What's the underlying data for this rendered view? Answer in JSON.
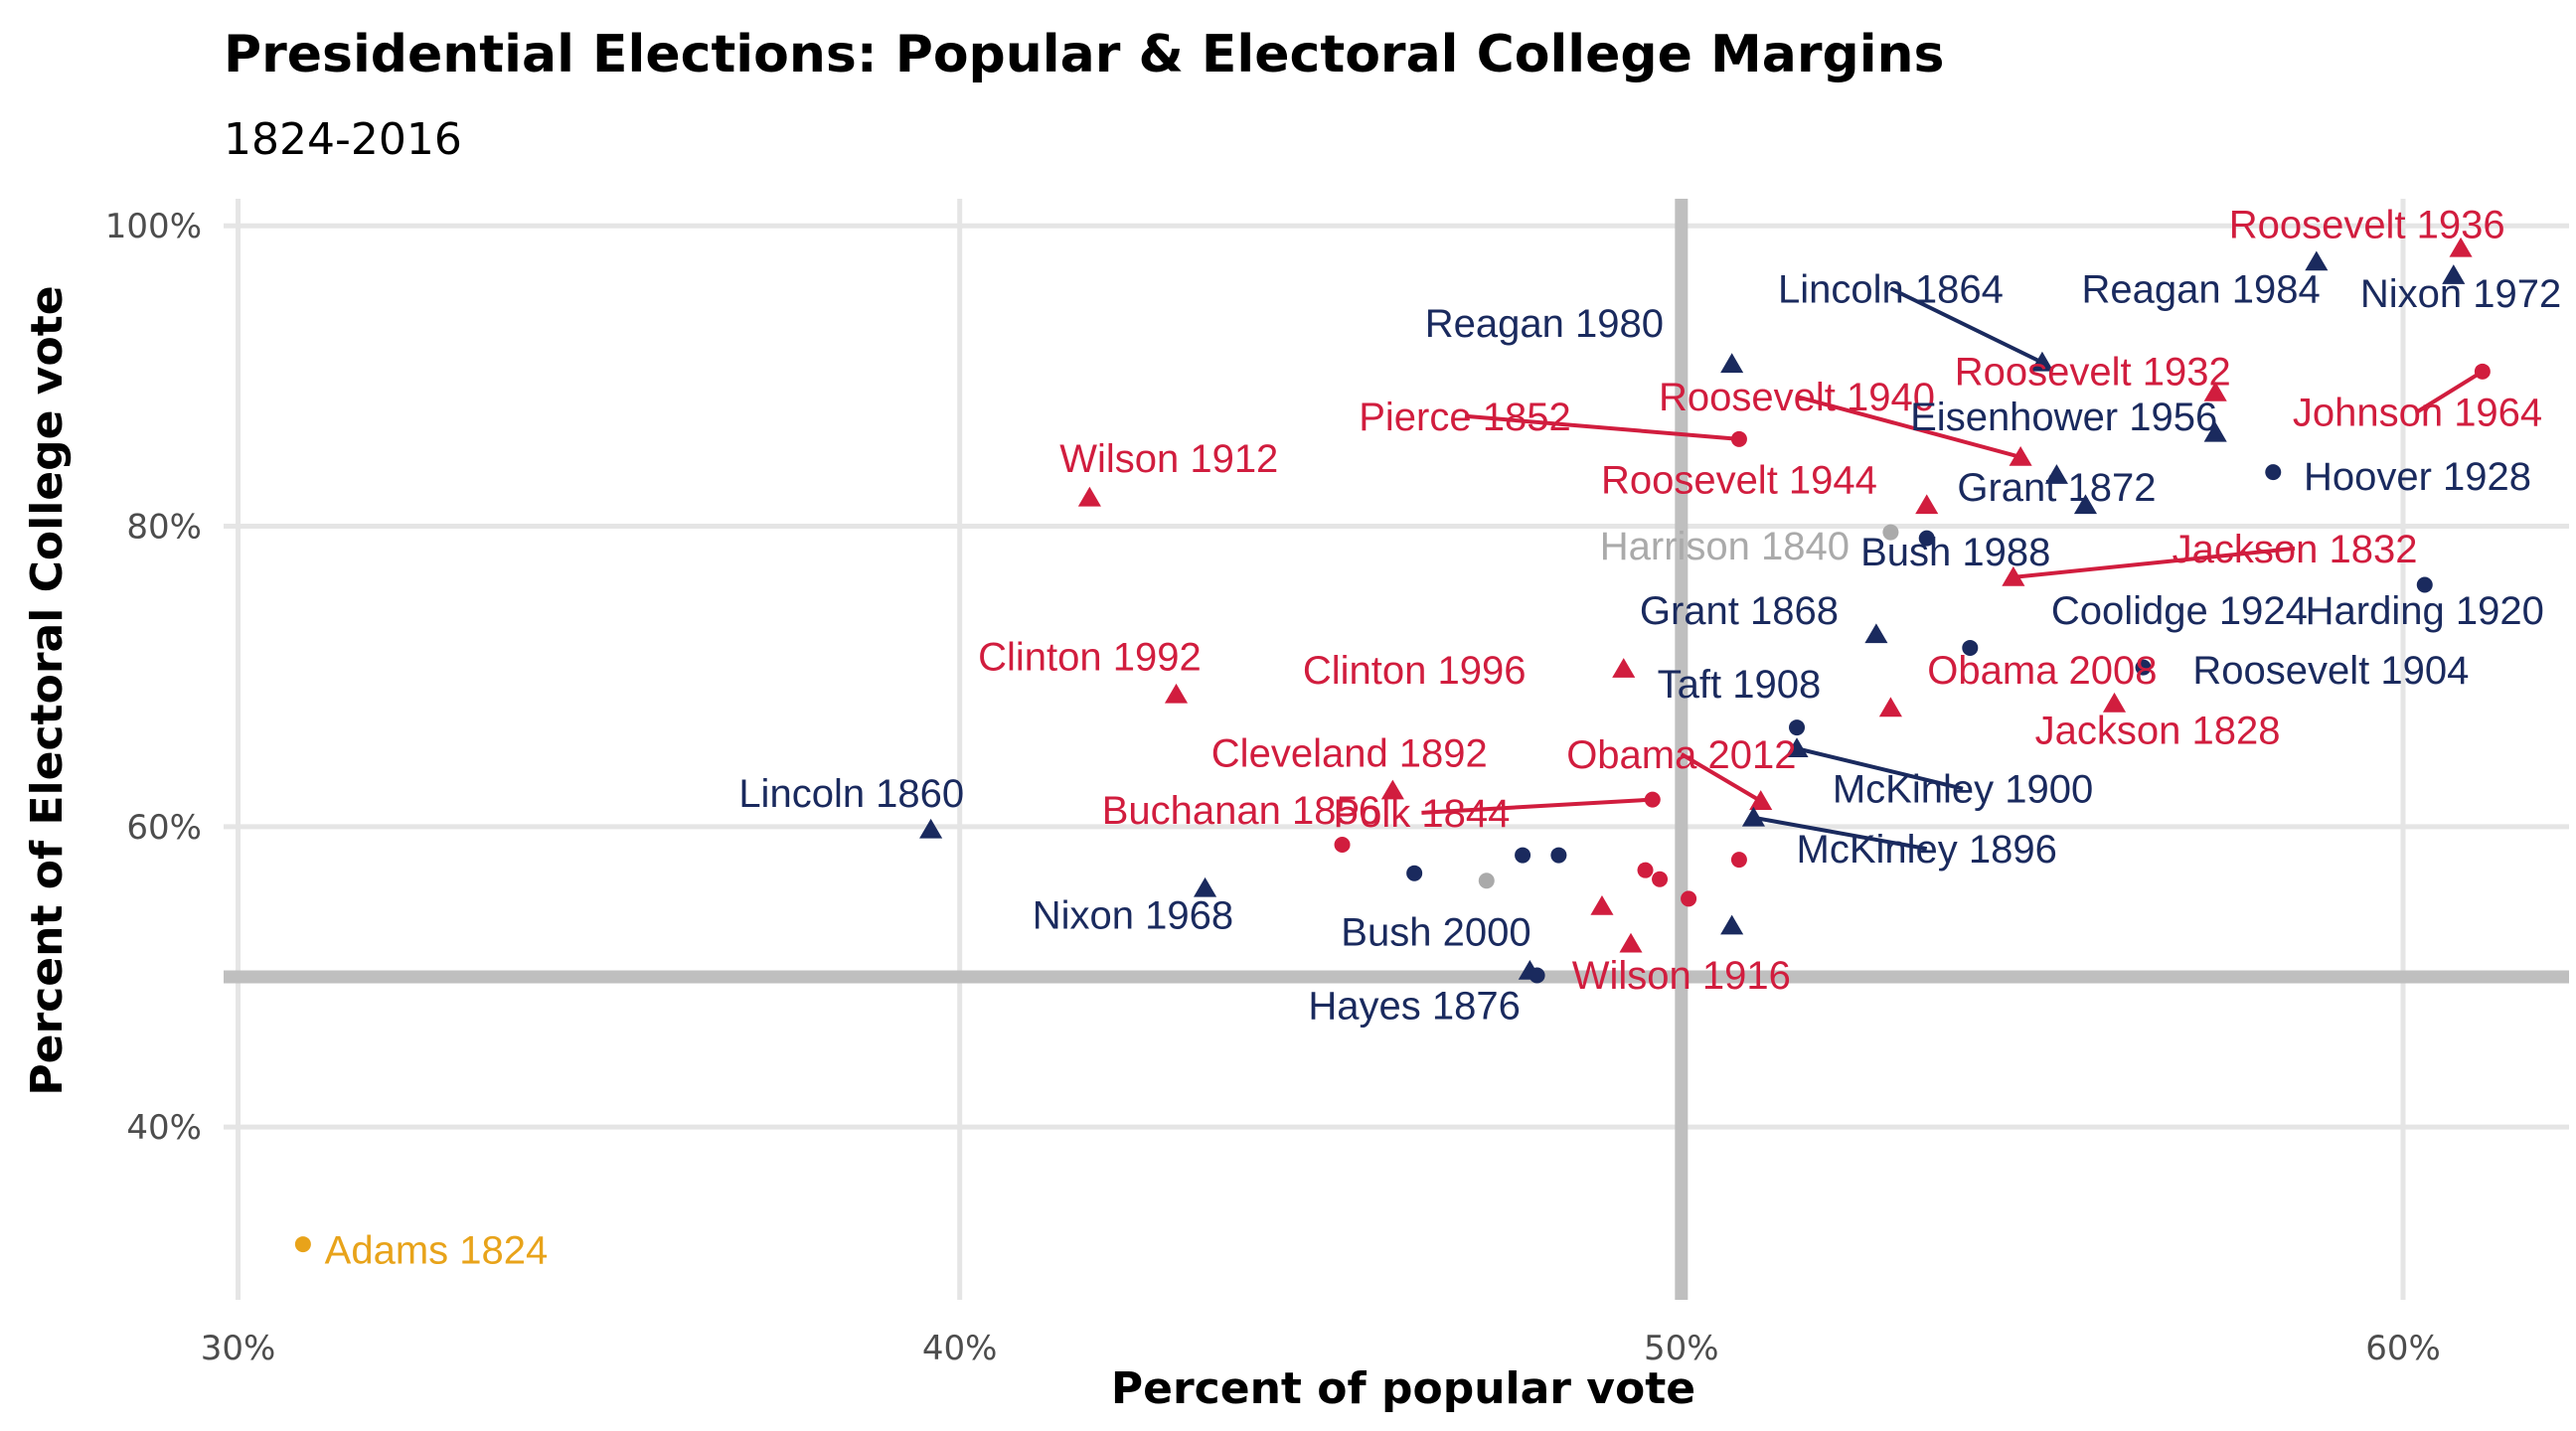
{
  "chart_data": {
    "type": "scatter",
    "title": "Presidential Elections: Popular & Electoral College Margins",
    "subtitle": "1824-2016",
    "xlabel": "Percent of popular vote",
    "ylabel": "Percent of Electoral College vote",
    "xlim": [
      29.8,
      62.3
    ],
    "ylim": [
      28.5,
      101.8
    ],
    "x_ticks": [
      30,
      40,
      50,
      60
    ],
    "x_tick_labels": [
      "30%",
      "40%",
      "50%",
      "60%"
    ],
    "y_ticks": [
      40,
      60,
      80,
      100
    ],
    "y_tick_labels": [
      "40%",
      "60%",
      "80%",
      "100%"
    ],
    "reference_lines": {
      "x": 50,
      "y": 50
    },
    "grid": true,
    "legend": "none",
    "colors": {
      "Democratic": "#d11d3e",
      "Republican": "#1a2a5e",
      "Whig": "#aaaaaa",
      "Other": "#e8a31a"
    },
    "points": [
      {
        "label": "Adams 1824",
        "party": "Other",
        "shape": "circle",
        "x": 30.9,
        "y": 32.2,
        "lx": 31.2,
        "ly": 30.9,
        "anchor": "start"
      },
      {
        "label": "Lincoln 1860",
        "party": "Republican",
        "shape": "triangle",
        "x": 39.6,
        "y": 59.8,
        "lx": 38.5,
        "ly": 61.3,
        "anchor": "middle"
      },
      {
        "label": "Wilson 1912",
        "party": "Democratic",
        "shape": "triangle",
        "x": 41.8,
        "y": 81.9,
        "lx": 42.9,
        "ly": 83.6,
        "anchor": "middle"
      },
      {
        "label": "Clinton 1992",
        "party": "Democratic",
        "shape": "triangle",
        "x": 43.0,
        "y": 68.8,
        "lx": 41.8,
        "ly": 70.4,
        "anchor": "middle"
      },
      {
        "label": "Nixon 1968",
        "party": "Republican",
        "shape": "triangle",
        "x": 43.4,
        "y": 55.9,
        "lx": 42.4,
        "ly": 53.2,
        "anchor": "middle"
      },
      {
        "label": "Cleveland 1892",
        "party": "Democratic",
        "shape": "triangle",
        "x": 46.0,
        "y": 62.4,
        "lx": 45.4,
        "ly": 64.0,
        "anchor": "middle"
      },
      {
        "label": "Buchanan 1856",
        "party": "Democratic",
        "shape": "circle",
        "x": 45.3,
        "y": 58.8,
        "lx": 43.9,
        "ly": 60.2,
        "anchor": "middle"
      },
      {
        "label": "Polk 1844",
        "party": "Democratic",
        "shape": "circle",
        "x": 49.6,
        "y": 61.8,
        "lx": 46.4,
        "ly": 60.0,
        "anchor": "middle",
        "segment": true
      },
      {
        "label": "",
        "party": "Republican",
        "shape": "circle",
        "x": 46.3,
        "y": 56.9
      },
      {
        "label": "",
        "party": "Whig",
        "shape": "circle",
        "x": 47.3,
        "y": 56.4
      },
      {
        "label": "",
        "party": "Republican",
        "shape": "circle",
        "x": 47.8,
        "y": 58.1
      },
      {
        "label": "",
        "party": "Republican",
        "shape": "circle",
        "x": 48.3,
        "y": 58.1
      },
      {
        "label": "",
        "party": "Democratic",
        "shape": "triangle",
        "x": 48.9,
        "y": 54.7
      },
      {
        "label": "",
        "party": "Democratic",
        "shape": "triangle",
        "x": 49.3,
        "y": 52.2
      },
      {
        "label": "",
        "party": "Democratic",
        "shape": "circle",
        "x": 49.5,
        "y": 57.1
      },
      {
        "label": "",
        "party": "Democratic",
        "shape": "circle",
        "x": 49.7,
        "y": 56.5
      },
      {
        "label": "",
        "party": "Democratic",
        "shape": "circle",
        "x": 50.1,
        "y": 55.2
      },
      {
        "label": "Bush 2000",
        "party": "Republican",
        "shape": "triangle",
        "x": 47.9,
        "y": 50.4,
        "lx": 46.6,
        "ly": 52.1,
        "anchor": "middle"
      },
      {
        "label": "Hayes 1876",
        "party": "Republican",
        "shape": "circle",
        "x": 48.0,
        "y": 50.1,
        "lx": 46.3,
        "ly": 47.2,
        "anchor": "middle"
      },
      {
        "label": "Wilson 1916",
        "party": "Democratic",
        "shape": "circle",
        "x": 49.2,
        "y": 52.2,
        "lx": 50.0,
        "ly": 49.2,
        "anchor": "middle",
        "hidden_point": true
      },
      {
        "label": "Obama 2012",
        "party": "Democratic",
        "shape": "triangle",
        "x": 51.1,
        "y": 61.7,
        "lx": 50.0,
        "ly": 63.9,
        "anchor": "middle",
        "segment": true
      },
      {
        "label": "McKinley 1896",
        "party": "Republican",
        "shape": "triangle",
        "x": 51.0,
        "y": 60.6,
        "lx": 53.4,
        "ly": 57.6,
        "anchor": "middle",
        "segment": true
      },
      {
        "label": "",
        "party": "Democratic",
        "shape": "circle",
        "x": 50.8,
        "y": 57.8
      },
      {
        "label": "",
        "party": "Republican",
        "shape": "triangle",
        "x": 50.7,
        "y": 53.4
      },
      {
        "label": "Taft 1908",
        "party": "Republican",
        "shape": "circle",
        "x": 51.6,
        "y": 66.6,
        "lx": 50.8,
        "ly": 68.6,
        "anchor": "middle"
      },
      {
        "label": "McKinley 1900",
        "party": "Republican",
        "shape": "triangle",
        "x": 51.6,
        "y": 65.2,
        "lx": 53.9,
        "ly": 61.6,
        "anchor": "middle",
        "segment": true
      },
      {
        "label": "Clinton 1996",
        "party": "Democratic",
        "shape": "triangle",
        "x": 49.2,
        "y": 70.5,
        "lx": 46.3,
        "ly": 69.5,
        "anchor": "middle"
      },
      {
        "label": "Grant 1868",
        "party": "Republican",
        "shape": "triangle",
        "x": 52.7,
        "y": 72.8,
        "lx": 50.8,
        "ly": 73.5,
        "anchor": "middle"
      },
      {
        "label": "Obama 2008",
        "party": "Democratic",
        "shape": "triangle",
        "x": 52.9,
        "y": 67.9,
        "lx": 55.0,
        "ly": 69.5,
        "anchor": "middle"
      },
      {
        "label": "Coolidge 1924",
        "party": "Republican",
        "shape": "circle",
        "x": 54.0,
        "y": 71.9,
        "lx": 56.9,
        "ly": 73.5,
        "anchor": "middle"
      },
      {
        "label": "Jackson 1828",
        "party": "Democratic",
        "shape": "triangle",
        "x": 56.0,
        "y": 68.2,
        "lx": 56.6,
        "ly": 65.5,
        "anchor": "middle"
      },
      {
        "label": "Roosevelt 1904",
        "party": "Republican",
        "shape": "circle",
        "x": 56.4,
        "y": 70.6,
        "lx": 59.0,
        "ly": 69.5,
        "anchor": "middle"
      },
      {
        "label": "Jackson 1832",
        "party": "Democratic",
        "shape": "triangle",
        "x": 54.6,
        "y": 76.6,
        "lx": 58.5,
        "ly": 77.6,
        "anchor": "middle",
        "segment": true
      },
      {
        "label": "Harding 1920",
        "party": "Republican",
        "shape": "circle",
        "x": 60.3,
        "y": 76.1,
        "lx": 60.3,
        "ly": 73.5,
        "anchor": "middle"
      },
      {
        "label": "Harrison 1840",
        "party": "Whig",
        "shape": "circle",
        "x": 52.9,
        "y": 79.6,
        "lx": 50.6,
        "ly": 77.8,
        "anchor": "middle"
      },
      {
        "label": "Bush 1988",
        "party": "Republican",
        "shape": "circle",
        "x": 53.4,
        "y": 79.2,
        "lx": 53.8,
        "ly": 77.4,
        "anchor": "middle"
      },
      {
        "label": "Roosevelt 1944",
        "party": "Democratic",
        "shape": "triangle",
        "x": 53.4,
        "y": 81.4,
        "lx": 50.8,
        "ly": 82.2,
        "anchor": "middle"
      },
      {
        "label": "Roosevelt 1940",
        "party": "Democratic",
        "shape": "triangle",
        "x": 54.7,
        "y": 84.6,
        "lx": 51.6,
        "ly": 87.7,
        "anchor": "middle",
        "segment": true
      },
      {
        "label": "Pierce 1852",
        "party": "Democratic",
        "shape": "circle",
        "x": 50.8,
        "y": 85.8,
        "lx": 47.0,
        "ly": 86.4,
        "anchor": "middle",
        "segment": true
      },
      {
        "label": "Reagan 1980",
        "party": "Republican",
        "shape": "triangle",
        "x": 50.7,
        "y": 90.8,
        "lx": 48.1,
        "ly": 92.6,
        "anchor": "middle"
      },
      {
        "label": "Lincoln 1864",
        "party": "Republican",
        "shape": "triangle",
        "x": 55.0,
        "y": 90.9,
        "lx": 52.9,
        "ly": 94.9,
        "anchor": "middle",
        "segment": true
      },
      {
        "label": "Eisenhower 1956",
        "party": "Republican",
        "shape": "triangle",
        "x": 57.4,
        "y": 86.2,
        "lx": 55.3,
        "ly": 86.4,
        "anchor": "middle"
      },
      {
        "label": "Grant 1872",
        "party": "Republican",
        "shape": "triangle",
        "x": 55.6,
        "y": 81.4,
        "lx": 55.2,
        "ly": 81.7,
        "anchor": "middle"
      },
      {
        "label": "",
        "party": "Republican",
        "shape": "triangle",
        "x": 55.2,
        "y": 83.4
      },
      {
        "label": "Roosevelt 1932",
        "party": "Democratic",
        "shape": "triangle",
        "x": 57.4,
        "y": 88.9,
        "lx": 55.7,
        "ly": 89.4,
        "anchor": "middle"
      },
      {
        "label": "Hoover 1928",
        "party": "Republican",
        "shape": "circle",
        "x": 58.2,
        "y": 83.6,
        "lx": 60.2,
        "ly": 82.4,
        "anchor": "middle"
      },
      {
        "label": "Reagan 1984",
        "party": "Republican",
        "shape": "triangle",
        "x": 58.8,
        "y": 97.6,
        "lx": 57.2,
        "ly": 94.9,
        "anchor": "middle"
      },
      {
        "label": "Nixon 1972",
        "party": "Republican",
        "shape": "triangle",
        "x": 60.7,
        "y": 96.7,
        "lx": 60.8,
        "ly": 94.6,
        "anchor": "middle"
      },
      {
        "label": "Roosevelt 1936",
        "party": "Democratic",
        "shape": "triangle",
        "x": 60.8,
        "y": 98.5,
        "lx": 59.5,
        "ly": 99.2,
        "anchor": "middle"
      },
      {
        "label": "Johnson 1964",
        "party": "Democratic",
        "shape": "circle",
        "x": 61.1,
        "y": 90.3,
        "lx": 60.2,
        "ly": 86.7,
        "anchor": "middle",
        "segment": true
      }
    ]
  }
}
